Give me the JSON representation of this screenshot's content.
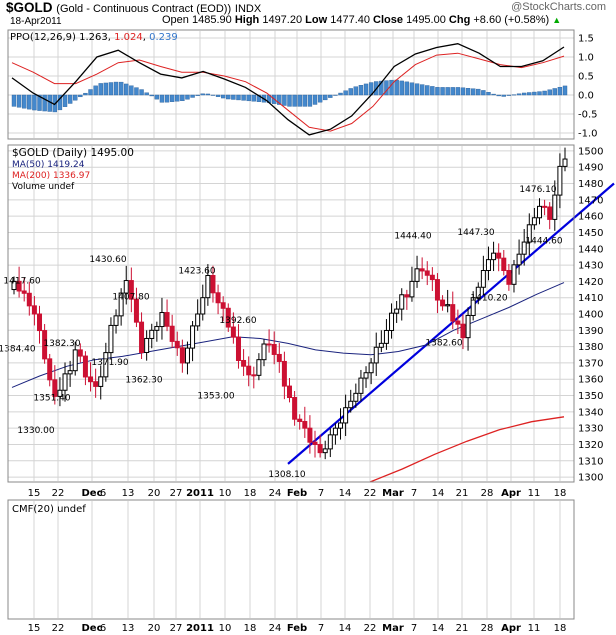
{
  "header": {
    "symbol": "$GOLD",
    "description": "(Gold - Continuous Contract (EOD))",
    "exchange": "INDX",
    "date": "18-Apr2011",
    "open_label": "Open",
    "open": "1485.90",
    "high_label": "High",
    "high": "1497.20",
    "low_label": "Low",
    "low": "1477.40",
    "close_label": "Close",
    "close": "1495.00",
    "chg_label": "Chg",
    "chg": "+8.60 (+0.58%)",
    "chg_arrow": "▲",
    "watermark": "@StockCharts.com"
  },
  "colors": {
    "up": "#000000",
    "down": "#cc1133",
    "ma50": "#1a237e",
    "ma200": "#dd2222",
    "trendline": "#0000dd",
    "hist": "#4488cc",
    "ppo_line": "#000000",
    "ppo_signal": "#dd2222",
    "grid": "#d4d4d4"
  },
  "ppo_panel": {
    "label": "PPO(12,26,9)",
    "ppo_value": "1.263",
    "signal_value": "1.024",
    "hist_value": "0.239",
    "y_ticks": [
      "1.5",
      "1.0",
      "0.5",
      "0.0",
      "-0.5",
      "-1.0"
    ]
  },
  "price_panel": {
    "label": "$GOLD (Daily) 1495.00",
    "ma50_label": "MA(50) 1419.24",
    "ma200_label": "MA(200) 1336.97",
    "volume_label": "Volume undef"
  },
  "cmf_panel": {
    "label": "CMF(20) undef"
  },
  "chart_data": [
    {
      "type": "candlestick",
      "x_labels": [
        "15",
        "22",
        "Dec",
        "6",
        "13",
        "20",
        "27",
        "2011",
        "10",
        "18",
        "24",
        "Feb",
        "7",
        "14",
        "22",
        "Mar",
        "7",
        "14",
        "21",
        "28",
        "Apr",
        "11",
        "18"
      ],
      "y_ticks": [
        1300,
        1310,
        1320,
        1330,
        1340,
        1350,
        1360,
        1370,
        1380,
        1390,
        1400,
        1410,
        1420,
        1430,
        1440,
        1450,
        1460,
        1470,
        1480,
        1490,
        1500
      ],
      "ylim": [
        1297,
        1503
      ],
      "annotations": [
        "1417.60",
        "1384.40",
        "1330.00",
        "1382.30",
        "1351.40",
        "1430.60",
        "1371.90",
        "1407.80",
        "1362.30",
        "1423.60",
        "1353.00",
        "1392.60",
        "1308.10",
        "1444.40",
        "1382.60",
        "1447.30",
        "1410.20",
        "1476.10",
        "1444.60"
      ],
      "series": [
        {
          "name": "MA(50)",
          "values": [
            1355,
            1362,
            1368,
            1372,
            1374,
            1377,
            1380,
            1383,
            1386,
            1385,
            1382,
            1378,
            1376,
            1375,
            1377,
            1381,
            1390,
            1397,
            1404,
            1412,
            1419.24
          ]
        },
        {
          "name": "MA(200)",
          "values": [
            1297,
            1305,
            1314,
            1322,
            1329,
            1334,
            1336.97
          ]
        },
        {
          "name": "trendline",
          "values": [
            1308.1,
            1461
          ]
        }
      ]
    },
    {
      "type": "line",
      "title": "PPO(12,26,9)",
      "ylim": [
        -1.25,
        1.75
      ],
      "series": [
        {
          "name": "PPO",
          "values": [
            0.45,
            0.05,
            -0.25,
            0.35,
            1.0,
            1.18,
            0.85,
            0.55,
            0.45,
            0.62,
            0.42,
            0.2,
            -0.15,
            -0.65,
            -1.05,
            -0.9,
            -0.55,
            0.05,
            0.75,
            1.08,
            1.25,
            1.35,
            1.1,
            0.75,
            0.75,
            0.9,
            1.263
          ]
        },
        {
          "name": "Signal",
          "values": [
            0.85,
            0.6,
            0.3,
            0.3,
            0.55,
            0.85,
            0.92,
            0.75,
            0.6,
            0.6,
            0.5,
            0.35,
            0.05,
            -0.4,
            -0.85,
            -0.95,
            -0.75,
            -0.3,
            0.35,
            0.8,
            1.05,
            1.1,
            0.95,
            0.8,
            0.72,
            0.85,
            1.024
          ]
        },
        {
          "name": "Histogram",
          "values": [
            -0.3,
            -0.4,
            -0.45,
            -0.1,
            0.3,
            0.35,
            0.15,
            -0.2,
            -0.15,
            0.05,
            -0.1,
            -0.15,
            -0.2,
            -0.3,
            -0.3,
            -0.05,
            0.2,
            0.35,
            0.4,
            0.3,
            0.2,
            0.2,
            0.15,
            -0.05,
            0.05,
            0.1,
            0.239
          ]
        }
      ]
    }
  ]
}
